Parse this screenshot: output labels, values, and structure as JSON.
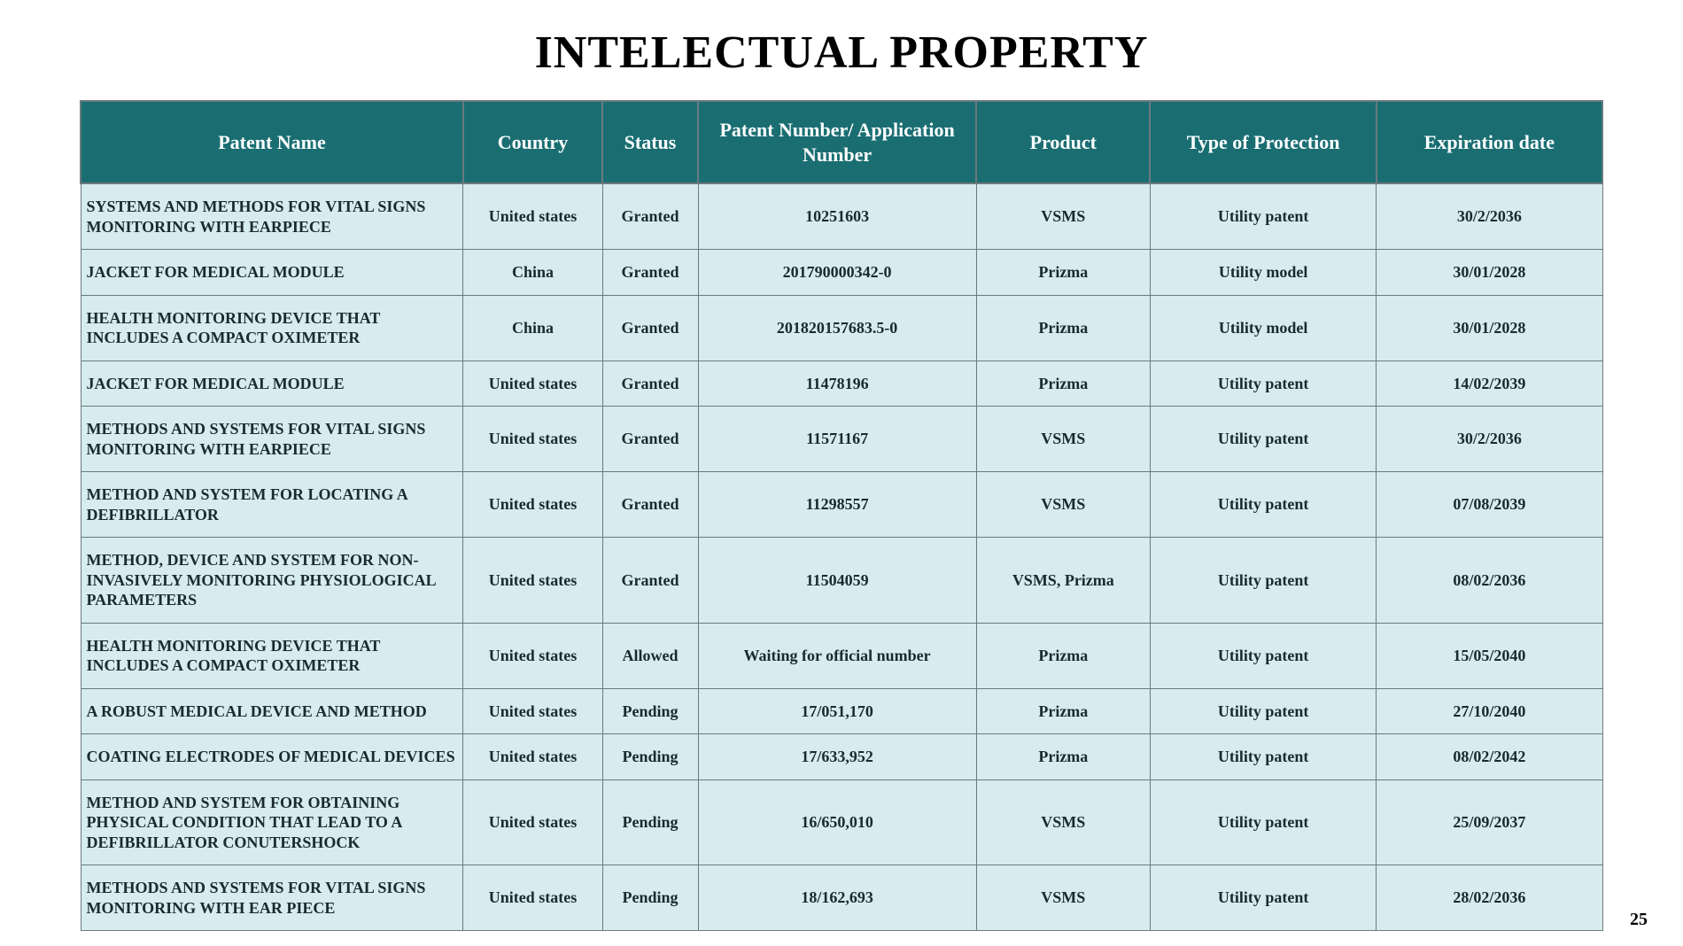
{
  "page": {
    "title": "INTELECTUAL PROPERTY",
    "number": "25",
    "background_color": "#ffffff"
  },
  "table": {
    "type": "table",
    "header_bg": "#1a6e72",
    "header_fg": "#ffffff",
    "cell_bg": "#d6ecef",
    "cell_fg": "#1a2a2d",
    "border_color": "#6a7a7c",
    "header_fontsize": 22,
    "cell_fontsize": 18,
    "column_widths_pct": [
      22,
      8,
      5.5,
      16,
      10,
      13,
      13
    ],
    "columns": [
      "Patent Name",
      "Country",
      "Status",
      "Patent Number/\nApplication Number",
      "Product",
      "Type of\nProtection",
      "Expiration date"
    ],
    "rows": [
      [
        "SYSTEMS AND METHODS FOR VITAL SIGNS MONITORING WITH EARPIECE",
        "United states",
        "Granted",
        "10251603",
        "VSMS",
        "Utility patent",
        "30/2/2036"
      ],
      [
        "JACKET FOR MEDICAL MODULE",
        "China",
        "Granted",
        "201790000342-0",
        "Prizma",
        "Utility model",
        "30/01/2028"
      ],
      [
        "HEALTH MONITORING DEVICE THAT INCLUDES A COMPACT OXIMETER",
        "China",
        "Granted",
        "201820157683.5-0",
        "Prizma",
        "Utility model",
        "30/01/2028"
      ],
      [
        "JACKET FOR MEDICAL MODULE",
        "United states",
        "Granted",
        "11478196",
        "Prizma",
        "Utility patent",
        "14/02/2039"
      ],
      [
        "METHODS AND SYSTEMS FOR VITAL SIGNS MONITORING WITH EARPIECE",
        "United states",
        "Granted",
        "11571167",
        "VSMS",
        "Utility patent",
        "30/2/2036"
      ],
      [
        "METHOD AND SYSTEM FOR LOCATING A DEFIBRILLATOR",
        "United states",
        "Granted",
        "11298557",
        "VSMS",
        "Utility patent",
        "07/08/2039"
      ],
      [
        "METHOD, DEVICE AND SYSTEM FOR NON-INVASIVELY MONITORING PHYSIOLOGICAL PARAMETERS",
        "United states",
        "Granted",
        "11504059",
        "VSMS, Prizma",
        "Utility patent",
        "08/02/2036"
      ],
      [
        "HEALTH MONITORING DEVICE THAT INCLUDES A COMPACT OXIMETER",
        "United states",
        "Allowed",
        "Waiting for official number",
        "Prizma",
        "Utility patent",
        "15/05/2040"
      ],
      [
        "A ROBUST MEDICAL DEVICE AND METHOD",
        "United states",
        "Pending",
        "17/051,170",
        "Prizma",
        "Utility patent",
        "27/10/2040"
      ],
      [
        "COATING ELECTRODES OF MEDICAL DEVICES",
        "United states",
        "Pending",
        "17/633,952",
        "Prizma",
        "Utility patent",
        "08/02/2042"
      ],
      [
        "METHOD AND SYSTEM FOR OBTAINING PHYSICAL CONDITION THAT LEAD TO A DEFIBRILLATOR CONUTERSHOCK",
        "United states",
        "Pending",
        "16/650,010",
        "VSMS",
        "Utility patent",
        "25/09/2037"
      ],
      [
        "METHODS AND SYSTEMS FOR VITAL SIGNS MONITORING WITH EAR PIECE",
        "United states",
        "Pending",
        "18/162,693",
        "VSMS",
        "Utility patent",
        "28/02/2036"
      ]
    ]
  }
}
